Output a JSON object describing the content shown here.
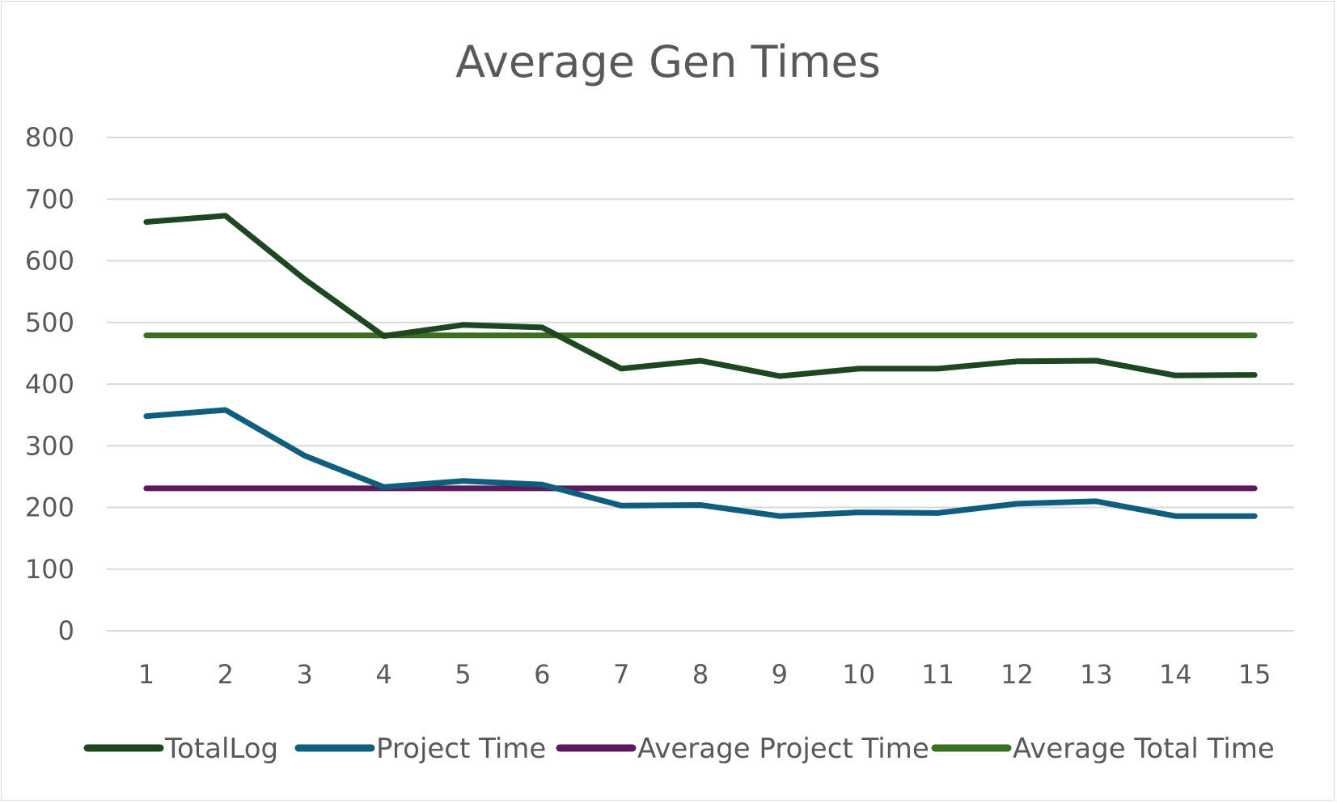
{
  "chart_data": {
    "type": "line",
    "title": "Average Gen Times",
    "xlabel": "",
    "ylabel": "",
    "categories": [
      "1",
      "2",
      "3",
      "4",
      "5",
      "6",
      "7",
      "8",
      "9",
      "10",
      "11",
      "12",
      "13",
      "14",
      "15"
    ],
    "ylim": [
      0,
      800
    ],
    "yticks": [
      0,
      100,
      200,
      300,
      400,
      500,
      600,
      700,
      800
    ],
    "grid": true,
    "legend_position": "bottom",
    "series": [
      {
        "name": "TotalLog",
        "color": "#1e4620",
        "values": [
          663,
          673,
          570,
          478,
          496,
          492,
          425,
          438,
          413,
          425,
          425,
          437,
          438,
          414,
          415
        ]
      },
      {
        "name": "Project Time",
        "color": "#0f5e7e",
        "values": [
          348,
          358,
          284,
          233,
          243,
          237,
          203,
          204,
          186,
          192,
          191,
          206,
          210,
          186,
          186
        ]
      },
      {
        "name": "Average Project Time",
        "color": "#5b1a5c",
        "values": [
          231,
          231,
          231,
          231,
          231,
          231,
          231,
          231,
          231,
          231,
          231,
          231,
          231,
          231,
          231
        ]
      },
      {
        "name": "Average Total Time",
        "color": "#3b6e22",
        "values": [
          479,
          479,
          479,
          479,
          479,
          479,
          479,
          479,
          479,
          479,
          479,
          479,
          479,
          479,
          479
        ]
      }
    ]
  }
}
